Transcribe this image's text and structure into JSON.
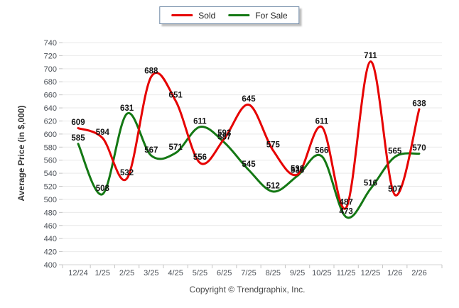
{
  "footer": {
    "copyright": "Copyright © Trendgraphix, Inc."
  },
  "chart_data": {
    "type": "line",
    "title": "",
    "xlabel": "",
    "ylabel": "Average Price (in $,000)",
    "categories": [
      "12/24",
      "1/25",
      "2/25",
      "3/25",
      "4/25",
      "5/25",
      "6/25",
      "7/25",
      "8/25",
      "9/25",
      "10/25",
      "11/25",
      "12/25",
      "1/26",
      "2/26"
    ],
    "series": [
      {
        "name": "Sold",
        "color": "#e60000",
        "values": [
          609,
          594,
          532,
          688,
          651,
          556,
          593,
          645,
          575,
          538,
          611,
          487,
          711,
          507,
          638
        ]
      },
      {
        "name": "For Sale",
        "color": "#147814",
        "values": [
          585,
          508,
          631,
          567,
          571,
          611,
          587,
          545,
          512,
          536,
          566,
          473,
          516,
          565,
          570
        ]
      }
    ],
    "ylim": [
      400,
      740
    ],
    "ytick_step": 20,
    "grid": "horizontal",
    "curve": "smooth",
    "legend_position": "top-center",
    "data_labels": true
  },
  "colors": {
    "gridline": "#e9e9e9",
    "tick_mark": "#c4c4c4",
    "tick_label": "#4a4f56",
    "data_label": "#141414"
  }
}
